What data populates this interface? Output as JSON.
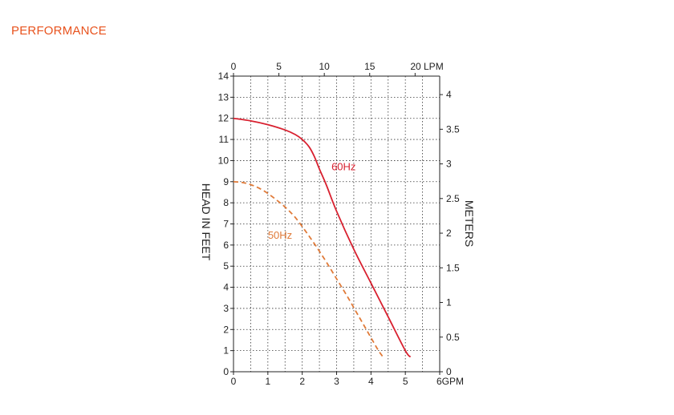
{
  "page": {
    "heading": "PERFORMANCE"
  },
  "chart_data": {
    "type": "line",
    "title": "",
    "x_axis": {
      "label": "GPM",
      "range": [
        0,
        6
      ],
      "ticks": [
        0,
        1,
        2,
        3,
        4,
        5,
        6
      ],
      "tick_labels": [
        "0",
        "1",
        "2",
        "3",
        "4",
        "5",
        "6GPM"
      ],
      "minor_step": 0.5
    },
    "x2_axis": {
      "label": "LPM",
      "position": "top",
      "range": [
        0,
        22.71
      ],
      "ticks": [
        0,
        5,
        10,
        15,
        20
      ],
      "tick_labels": [
        "0",
        "5",
        "10",
        "15",
        "20 LPM"
      ]
    },
    "y_axis": {
      "label": "HEAD IN FEET",
      "range": [
        0,
        14
      ],
      "ticks": [
        0,
        1,
        2,
        3,
        4,
        5,
        6,
        7,
        8,
        9,
        10,
        11,
        12,
        13,
        14
      ],
      "tick_labels": [
        "0",
        "1",
        "2",
        "3",
        "4",
        "5",
        "6",
        "7",
        "8",
        "9",
        "10",
        "11",
        "12",
        "13",
        "14"
      ]
    },
    "y2_axis": {
      "label": "METERS",
      "position": "right",
      "range": [
        0,
        4.267
      ],
      "ticks": [
        0,
        0.5,
        1,
        1.5,
        2,
        2.5,
        3,
        3.5,
        4
      ],
      "tick_labels": [
        "0",
        "0.5",
        "1",
        "1.5",
        "2",
        "2.5",
        "3",
        "3.5",
        "4"
      ]
    },
    "grid": true,
    "series": [
      {
        "name": "60Hz",
        "color": "#d8202f",
        "dash": "solid",
        "x": [
          0,
          0.5,
          1.0,
          1.5,
          1.8,
          2.0,
          2.2,
          2.35,
          2.5,
          2.7,
          3.0,
          3.5,
          4.0,
          4.5,
          5.0,
          5.15
        ],
        "y": [
          12.0,
          11.88,
          11.7,
          11.45,
          11.23,
          11.0,
          10.65,
          10.2,
          9.6,
          8.85,
          7.6,
          5.8,
          4.2,
          2.6,
          1.0,
          0.7
        ]
      },
      {
        "name": "50Hz",
        "color": "#e07a38",
        "dash": "dashed",
        "x": [
          0,
          0.3,
          0.6,
          0.9,
          1.2,
          1.5,
          1.8,
          2.1,
          2.4,
          2.7,
          3.0,
          3.3,
          3.6,
          3.9,
          4.2,
          4.35
        ],
        "y": [
          9.0,
          8.95,
          8.8,
          8.55,
          8.2,
          7.8,
          7.3,
          6.65,
          5.95,
          5.2,
          4.4,
          3.6,
          2.75,
          1.9,
          1.05,
          0.7
        ]
      }
    ],
    "series_labels": [
      {
        "text": "60Hz",
        "x": 2.85,
        "y": 9.55
      },
      {
        "text": "50Hz",
        "x": 1.0,
        "y": 6.3
      }
    ]
  }
}
